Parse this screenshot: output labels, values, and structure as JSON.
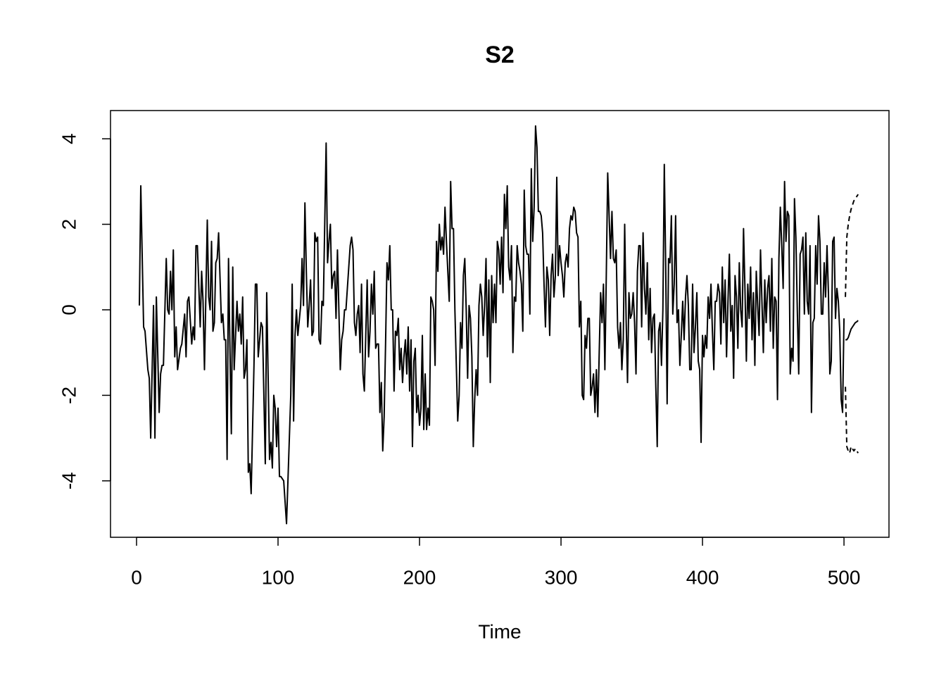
{
  "chart_data": {
    "type": "line",
    "title": "S2",
    "x_label": "Time",
    "xlim": [
      -18.4,
      531.8
    ],
    "ylim": [
      -5.32,
      4.66
    ],
    "xticks": [
      0,
      100,
      200,
      300,
      400,
      500
    ],
    "yticks": [
      -4,
      -2,
      0,
      2,
      4
    ],
    "series": [
      {
        "color": "#000000",
        "line_style": "solid",
        "x": [
          2,
          3,
          5,
          6,
          8,
          9,
          10,
          12,
          13,
          14,
          16,
          17,
          18,
          19,
          21,
          22,
          23,
          24,
          25,
          26,
          27,
          28,
          29,
          31,
          32,
          34,
          35,
          36,
          37,
          39,
          40,
          41,
          42,
          43,
          45,
          46,
          47,
          48,
          50,
          51,
          52,
          53,
          54,
          55,
          56,
          57,
          58,
          60,
          61,
          62,
          63,
          64,
          65,
          67,
          68,
          69,
          71,
          72,
          73,
          74,
          75,
          76,
          77,
          78,
          79,
          80,
          81,
          83,
          84,
          85,
          86,
          88,
          89,
          91,
          92,
          94,
          95,
          96,
          97,
          98,
          99,
          100,
          101,
          102,
          104,
          106,
          108,
          109,
          110,
          111,
          112,
          113,
          114,
          116,
          117,
          118,
          119,
          120,
          121,
          122,
          123,
          124,
          125,
          126,
          127,
          128,
          129,
          130,
          131,
          132,
          134,
          135,
          136,
          137,
          138,
          139,
          140,
          141,
          142,
          144,
          145,
          146,
          147,
          148,
          150,
          151,
          152,
          153,
          154,
          155,
          156,
          157,
          158,
          159,
          160,
          161,
          162,
          163,
          164,
          165,
          166,
          167,
          168,
          169,
          170,
          171,
          172,
          173,
          174,
          175,
          176,
          177,
          178,
          179,
          180,
          181,
          182,
          183,
          184,
          185,
          186,
          187,
          188,
          189,
          190,
          191,
          192,
          193,
          194,
          195,
          196,
          197,
          198,
          199,
          200,
          201,
          202,
          203,
          204,
          205,
          206,
          207,
          208,
          209,
          210,
          211,
          212,
          213,
          214,
          215,
          216,
          217,
          218,
          219,
          220,
          221,
          222,
          223,
          224,
          225,
          226,
          227,
          228,
          229,
          230,
          231,
          232,
          233,
          234,
          235,
          236,
          237,
          238,
          239,
          240,
          241,
          242,
          243,
          244,
          245,
          246,
          247,
          248,
          249,
          250,
          251,
          252,
          253,
          254,
          255,
          256,
          257,
          258,
          259,
          260,
          261,
          262,
          263,
          264,
          265,
          266,
          267,
          268,
          269,
          270,
          271,
          272,
          273,
          274,
          275,
          276,
          277,
          278,
          279,
          280,
          281,
          282,
          283,
          284,
          285,
          286,
          287,
          288,
          289,
          290,
          291,
          292,
          293,
          294,
          295,
          296,
          297,
          298,
          299,
          300,
          301,
          302,
          303,
          304,
          305,
          306,
          307,
          308,
          309,
          310,
          311,
          312,
          313,
          314,
          315,
          316,
          317,
          318,
          319,
          320,
          321,
          322,
          323,
          324,
          325,
          326,
          327,
          328,
          329,
          330,
          331,
          332,
          333,
          334,
          335,
          336,
          337,
          338,
          339,
          340,
          341,
          342,
          343,
          344,
          345,
          346,
          347,
          348,
          349,
          350,
          351,
          352,
          353,
          354,
          355,
          356,
          357,
          358,
          359,
          360,
          361,
          362,
          363,
          364,
          365,
          366,
          367,
          368,
          369,
          370,
          371,
          372,
          373,
          374,
          375,
          376,
          377,
          378,
          379,
          380,
          381,
          382,
          383,
          384,
          385,
          386,
          387,
          388,
          389,
          390,
          391,
          392,
          393,
          394,
          395,
          396,
          397,
          398,
          399,
          400,
          401,
          402,
          403,
          404,
          405,
          406,
          407,
          408,
          409,
          410,
          411,
          412,
          413,
          414,
          415,
          416,
          417,
          418,
          419,
          420,
          421,
          422,
          423,
          424,
          425,
          426,
          427,
          428,
          429,
          430,
          431,
          432,
          433,
          434,
          435,
          436,
          437,
          438,
          439,
          440,
          441,
          442,
          443,
          444,
          445,
          446,
          447,
          448,
          449,
          450,
          451,
          452,
          453,
          454,
          455,
          456,
          457,
          458,
          459,
          460,
          461,
          462,
          463,
          464,
          465,
          466,
          467,
          468,
          469,
          470,
          471,
          472,
          473,
          474,
          475,
          476,
          477,
          478,
          479,
          480,
          481,
          482,
          483,
          484,
          485,
          486,
          487,
          488,
          489,
          490,
          491,
          492,
          493,
          494,
          495,
          496,
          497,
          498,
          499,
          500
        ],
        "values": [
          0.1,
          2.9,
          -0.4,
          -0.5,
          -1.4,
          -1.6,
          -3.0,
          0.1,
          -3.0,
          0.3,
          -2.4,
          -1.5,
          -1.3,
          -1.3,
          1.2,
          0.0,
          -0.1,
          0.9,
          0.0,
          1.4,
          -1.1,
          -0.4,
          -1.4,
          -0.9,
          -0.8,
          -0.1,
          -1.1,
          0.2,
          0.3,
          -0.8,
          -0.4,
          -0.7,
          1.5,
          1.5,
          -0.4,
          0.9,
          0.2,
          -1.4,
          2.1,
          0.3,
          0.0,
          1.6,
          -0.5,
          -0.3,
          1.1,
          1.2,
          1.8,
          -0.3,
          -0.1,
          -0.7,
          -0.7,
          -3.5,
          1.2,
          -2.9,
          1.0,
          -1.4,
          0.2,
          -0.5,
          -0.1,
          -0.8,
          0.3,
          -1.6,
          -1.4,
          -0.7,
          -3.8,
          -3.6,
          -4.3,
          -1.3,
          0.6,
          0.6,
          -1.1,
          -0.3,
          -0.4,
          -3.6,
          0.4,
          -3.5,
          -3.1,
          -3.7,
          -2.0,
          -2.3,
          -3.2,
          -2.3,
          -3.9,
          -3.9,
          -4.0,
          -5.0,
          -3.0,
          -2.0,
          0.6,
          -2.6,
          -0.6,
          0.0,
          -0.6,
          0.1,
          1.2,
          0.1,
          2.5,
          0.9,
          -0.4,
          0.1,
          0.7,
          -0.6,
          -0.5,
          1.8,
          1.6,
          1.7,
          -0.7,
          -0.8,
          0.2,
          0.1,
          3.9,
          1.1,
          1.6,
          2.0,
          0.5,
          0.8,
          0.9,
          -0.2,
          1.4,
          -1.4,
          -0.7,
          -0.5,
          0.0,
          0.0,
          1.0,
          1.5,
          1.7,
          1.4,
          -0.3,
          -0.6,
          -0.1,
          0.1,
          -1.0,
          0.6,
          -1.5,
          -1.9,
          -0.6,
          0.7,
          -1.1,
          -0.5,
          0.6,
          -0.1,
          0.9,
          -0.9,
          -0.8,
          -0.8,
          -2.4,
          -1.7,
          -3.3,
          -2.5,
          -0.8,
          1.1,
          0.7,
          1.5,
          0.0,
          0.0,
          -1.9,
          -0.5,
          -0.6,
          -0.2,
          -1.4,
          -0.9,
          -1.7,
          -1.1,
          -0.7,
          -1.5,
          -0.4,
          -1.9,
          -0.7,
          -3.2,
          -1.2,
          -0.9,
          -2.4,
          -2.0,
          -2.7,
          -2.3,
          -0.6,
          -2.8,
          -1.5,
          -2.8,
          -2.3,
          -2.7,
          0.3,
          0.2,
          0.0,
          -1.3,
          1.6,
          0.9,
          2.0,
          1.4,
          1.7,
          1.3,
          2.4,
          1.6,
          0.9,
          0.2,
          3.0,
          1.9,
          1.9,
          0.0,
          -1.3,
          -2.6,
          -2.0,
          -0.3,
          -0.9,
          0.8,
          1.2,
          0.0,
          -1.6,
          0.1,
          -0.2,
          -1.1,
          -3.2,
          -2.1,
          -1.4,
          -2.0,
          0.1,
          0.6,
          0.3,
          -0.6,
          0.1,
          1.2,
          -1.1,
          0.7,
          -1.7,
          0.8,
          -0.3,
          0.6,
          -0.3,
          1.6,
          1.4,
          0.6,
          1.7,
          0.4,
          2.7,
          1.9,
          2.9,
          1.0,
          0.7,
          1.5,
          -1.0,
          0.3,
          0.2,
          1.5,
          1.1,
          0.9,
          0.6,
          -0.5,
          2.8,
          1.5,
          1.3,
          1.3,
          -0.1,
          3.3,
          1.6,
          2.4,
          4.3,
          3.8,
          2.3,
          2.3,
          2.2,
          1.8,
          0.6,
          -0.4,
          1.0,
          0.7,
          -0.6,
          0.8,
          1.3,
          0.3,
          0.8,
          3.1,
          0.8,
          1.5,
          1.1,
          0.8,
          0.3,
          1.1,
          1.3,
          1.0,
          1.9,
          2.2,
          2.1,
          2.4,
          2.3,
          1.8,
          1.7,
          -0.4,
          0.2,
          -2.0,
          -2.1,
          -0.6,
          -0.9,
          -0.2,
          -0.2,
          -2.0,
          -1.8,
          -1.5,
          -2.4,
          -1.4,
          -2.5,
          -1.0,
          0.4,
          -0.3,
          0.6,
          -1.4,
          0.8,
          3.2,
          2.2,
          1.2,
          2.3,
          1.2,
          1.1,
          1.4,
          -0.4,
          -0.9,
          -0.3,
          -1.4,
          -0.7,
          2.0,
          -0.2,
          -1.7,
          0.4,
          -0.2,
          -0.1,
          0.4,
          -0.3,
          -1.5,
          0.9,
          1.5,
          1.5,
          -0.4,
          1.8,
          0.5,
          -0.1,
          1.1,
          -0.7,
          0.5,
          -1.0,
          -0.2,
          -0.1,
          -1.8,
          -3.2,
          -0.5,
          -0.3,
          -1.3,
          0.0,
          3.4,
          1.0,
          -2.2,
          1.2,
          1.1,
          2.2,
          -0.1,
          0.6,
          2.2,
          -0.3,
          0.0,
          -1.3,
          -0.6,
          0.2,
          -0.7,
          0.3,
          0.8,
          0.1,
          -1.4,
          -1.4,
          0.6,
          -1.0,
          -0.4,
          0.4,
          -1.2,
          -1.4,
          -3.1,
          -0.6,
          -1.1,
          -0.6,
          -0.9,
          0.3,
          -0.2,
          0.6,
          -0.5,
          -1.4,
          0.2,
          0.2,
          0.6,
          0.4,
          -0.8,
          1.0,
          -0.3,
          0.7,
          -1.1,
          0.2,
          1.3,
          -0.5,
          0.1,
          -1.6,
          0.8,
          0.3,
          -0.9,
          1.1,
          0.0,
          -0.4,
          1.9,
          0.5,
          -1.2,
          0.6,
          -0.2,
          1.0,
          -0.7,
          0.4,
          -1.3,
          0.9,
          0.1,
          -0.6,
          1.4,
          0.2,
          -1.0,
          0.7,
          -0.3,
          0.5,
          0.8,
          -0.5,
          1.2,
          -0.9,
          0.3,
          0.2,
          -2.1,
          1.2,
          2.4,
          1.5,
          0.5,
          3.0,
          1.6,
          2.3,
          2.2,
          -1.5,
          -0.9,
          -1.2,
          2.6,
          1.7,
          0.0,
          -1.5,
          1.3,
          1.4,
          1.7,
          -0.1,
          1.8,
          0.2,
          -0.1,
          1.5,
          -2.4,
          -0.3,
          -0.2,
          1.5,
          0.6,
          2.2,
          1.6,
          -0.1,
          -0.1,
          1.1,
          0.3,
          1.5,
          0.4,
          -1.5,
          -1.2,
          1.6,
          1.7,
          -0.2,
          0.5,
          0.2,
          -0.5,
          -2.1,
          -2.4,
          -0.2
        ]
      },
      {
        "color": "#000000",
        "line_style": "solid",
        "x": [
          501,
          502,
          503,
          504,
          505,
          506,
          507,
          508,
          509,
          510
        ],
        "values": [
          -0.7,
          -0.7,
          -0.65,
          -0.55,
          -0.45,
          -0.4,
          -0.35,
          -0.3,
          -0.28,
          -0.25
        ]
      },
      {
        "color": "#000000",
        "line_style": "dashed",
        "x": [
          501,
          502,
          503,
          504,
          505,
          506,
          507,
          508,
          509,
          510
        ],
        "values": [
          0.3,
          1.7,
          2.0,
          2.2,
          2.35,
          2.45,
          2.55,
          2.6,
          2.65,
          2.7
        ]
      },
      {
        "color": "#000000",
        "line_style": "dashed",
        "x": [
          501,
          502,
          503,
          504,
          505,
          506,
          507,
          508,
          509,
          510
        ],
        "values": [
          -1.8,
          -3.2,
          -3.3,
          -3.35,
          -3.2,
          -3.25,
          -3.3,
          -3.25,
          -3.3,
          -3.35
        ]
      }
    ]
  }
}
